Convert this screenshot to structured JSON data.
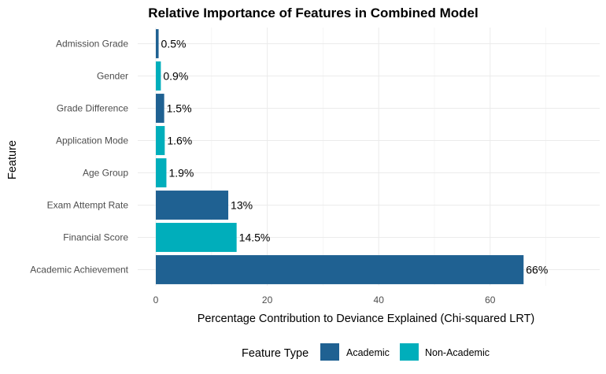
{
  "chart_data": {
    "type": "bar",
    "orientation": "horizontal",
    "title": "Relative Importance of Features in Combined Model",
    "xlabel": "Percentage Contribution to Deviance Explained (Chi-squared LRT)",
    "ylabel": "Feature",
    "xlim": [
      0,
      70
    ],
    "xticks": [
      0,
      20,
      40,
      60
    ],
    "grid": true,
    "legend": {
      "title": "Feature Type",
      "position": "bottom",
      "entries": [
        {
          "name": "Academic",
          "color": "#1f6192"
        },
        {
          "name": "Non-Academic",
          "color": "#00aebb"
        }
      ]
    },
    "categories": [
      "Admission Grade",
      "Gender",
      "Grade Difference",
      "Application Mode",
      "Age Group",
      "Exam Attempt Rate",
      "Financial Score",
      "Academic Achievement"
    ],
    "values": [
      0.5,
      0.9,
      1.5,
      1.6,
      1.9,
      13,
      14.5,
      66
    ],
    "labels": [
      "0.5%",
      "0.9%",
      "1.5%",
      "1.6%",
      "1.9%",
      "13%",
      "14.5%",
      "66%"
    ],
    "types": [
      "Academic",
      "Non-Academic",
      "Academic",
      "Non-Academic",
      "Non-Academic",
      "Academic",
      "Non-Academic",
      "Academic"
    ]
  }
}
